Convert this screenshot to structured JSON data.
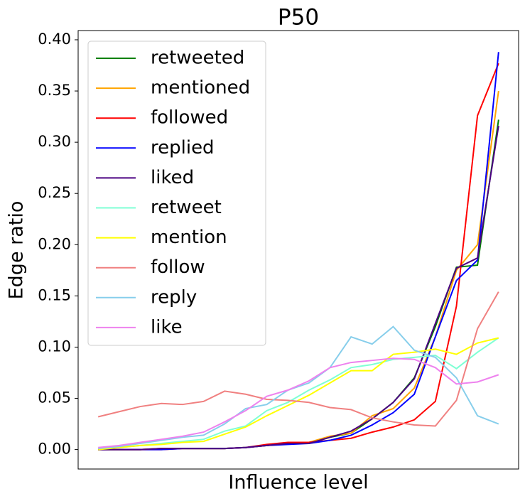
{
  "chart_data": {
    "type": "line",
    "title": "P50",
    "xlabel": "Influence level",
    "ylabel": "Edge ratio",
    "x": [
      0,
      1,
      2,
      3,
      4,
      5,
      6,
      7,
      8,
      9,
      10,
      11,
      12,
      13,
      14,
      15,
      16,
      17,
      18,
      19
    ],
    "xlim": [
      -0.95,
      19.95
    ],
    "ylim": [
      -0.019,
      0.409
    ],
    "yticks": [
      {
        "value": 0,
        "label": "0.00"
      },
      0.05,
      {
        "value": 0.1,
        "label": "0.10"
      },
      0.15,
      {
        "value": 0.2,
        "label": "0.20"
      },
      0.25,
      {
        "value": 0.3,
        "label": "0.30"
      },
      0.35,
      {
        "value": 0.4,
        "label": "0.40"
      }
    ],
    "legend": "upper left",
    "series": [
      {
        "name": "retweeted",
        "color": "#008000",
        "values": [
          0,
          0,
          0,
          0.001,
          0.001,
          0.001,
          0.001,
          0.002,
          0.004,
          0.006,
          0.006,
          0.012,
          0.016,
          0.03,
          0.046,
          0.07,
          0.12,
          0.178,
          0.18,
          0.322
        ]
      },
      {
        "name": "mentioned",
        "color": "#ffa500",
        "values": [
          0,
          0,
          0,
          0.001,
          0.001,
          0.001,
          0.001,
          0.002,
          0.004,
          0.006,
          0.007,
          0.013,
          0.016,
          0.033,
          0.04,
          0.06,
          0.11,
          0.175,
          0.2,
          0.35
        ]
      },
      {
        "name": "followed",
        "color": "#ff0000",
        "values": [
          0,
          0,
          0,
          0,
          0.001,
          0.001,
          0.001,
          0.002,
          0.005,
          0.007,
          0.007,
          0.009,
          0.011,
          0.017,
          0.022,
          0.029,
          0.047,
          0.14,
          0.326,
          0.377
        ]
      },
      {
        "name": "replied",
        "color": "#0000ff",
        "values": [
          0,
          0,
          0,
          0,
          0.001,
          0.001,
          0.001,
          0.002,
          0.004,
          0.005,
          0.006,
          0.009,
          0.014,
          0.024,
          0.036,
          0.054,
          0.11,
          0.165,
          0.185,
          0.388
        ]
      },
      {
        "name": "liked",
        "color": "#4b0082",
        "values": [
          0,
          0,
          0,
          0.001,
          0.001,
          0.001,
          0.001,
          0.002,
          0.004,
          0.006,
          0.006,
          0.012,
          0.018,
          0.03,
          0.046,
          0.069,
          0.123,
          0.177,
          0.187,
          0.316
        ]
      },
      {
        "name": "retweet",
        "color": "#7fffd4",
        "values": [
          0.001,
          0.002,
          0.004,
          0.006,
          0.008,
          0.01,
          0.018,
          0.023,
          0.038,
          0.046,
          0.058,
          0.068,
          0.08,
          0.083,
          0.088,
          0.09,
          0.092,
          0.079,
          0.095,
          0.109
        ]
      },
      {
        "name": "mention",
        "color": "#ffff00",
        "values": [
          0,
          0.002,
          0.004,
          0.005,
          0.007,
          0.008,
          0.015,
          0.022,
          0.033,
          0.043,
          0.053,
          0.065,
          0.077,
          0.077,
          0.093,
          0.095,
          0.098,
          0.093,
          0.104,
          0.109
        ]
      },
      {
        "name": "follow",
        "color": "#f08080",
        "values": [
          0.032,
          0.037,
          0.042,
          0.045,
          0.044,
          0.047,
          0.057,
          0.054,
          0.049,
          0.048,
          0.046,
          0.041,
          0.039,
          0.031,
          0.027,
          0.024,
          0.023,
          0.048,
          0.118,
          0.154
        ]
      },
      {
        "name": "reply",
        "color": "#87ceeb",
        "values": [
          0.001,
          0.003,
          0.006,
          0.009,
          0.012,
          0.014,
          0.025,
          0.04,
          0.044,
          0.058,
          0.065,
          0.08,
          0.11,
          0.103,
          0.12,
          0.097,
          0.09,
          0.07,
          0.033,
          0.025
        ]
      },
      {
        "name": "like",
        "color": "#ee82ee",
        "values": [
          0.002,
          0.004,
          0.007,
          0.01,
          0.013,
          0.017,
          0.027,
          0.038,
          0.052,
          0.058,
          0.067,
          0.08,
          0.085,
          0.087,
          0.089,
          0.088,
          0.08,
          0.064,
          0.066,
          0.073
        ]
      }
    ]
  }
}
